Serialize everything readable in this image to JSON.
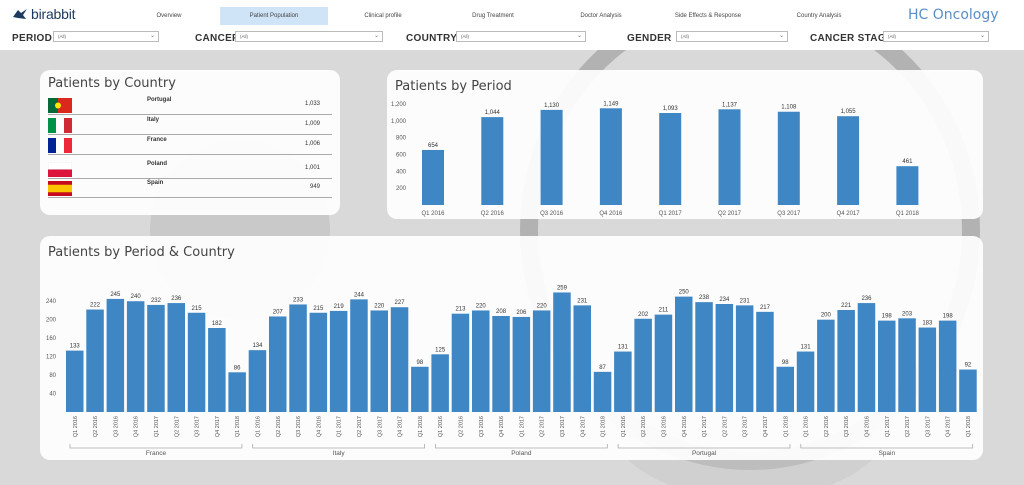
{
  "header": {
    "logo_text": "birabbit",
    "brand": "HC Oncology",
    "tabs": [
      {
        "label": "Overview",
        "active": false
      },
      {
        "label": "Patient Population",
        "active": true
      },
      {
        "label": "Clinical profile",
        "active": false
      },
      {
        "label": "Drug Treatment",
        "active": false
      },
      {
        "label": "Doctor Analysis",
        "active": false
      },
      {
        "label": "Side Effects & Response",
        "active": false
      },
      {
        "label": "Country Analysis",
        "active": false
      }
    ]
  },
  "filters": [
    {
      "label": "PERIOD",
      "value": "(All)"
    },
    {
      "label": "CANCER",
      "value": "(All)"
    },
    {
      "label": "COUNTRY",
      "value": "(All)"
    },
    {
      "label": "GENDER",
      "value": "(All)"
    },
    {
      "label": "CANCER STAGE",
      "value": "(All)"
    }
  ],
  "patients_by_country": {
    "title": "Patients by Country",
    "rows": [
      {
        "country": "Portugal",
        "value": "1,033",
        "flag": "portugal"
      },
      {
        "country": "Italy",
        "value": "1,009",
        "flag": "italy"
      },
      {
        "country": "France",
        "value": "1,006",
        "flag": "france"
      },
      {
        "country": "Poland",
        "value": "1,001",
        "flag": "poland"
      },
      {
        "country": "Spain",
        "value": "949",
        "flag": "spain"
      }
    ]
  },
  "colors": {
    "bar": "#3f86c4",
    "tab_active": "#cfe4f7",
    "brand": "#5a8ec7"
  },
  "chart_data": [
    {
      "type": "bar",
      "title": "Patients by Period",
      "categories": [
        "Q1 2016",
        "Q2 2016",
        "Q3 2016",
        "Q4 2016",
        "Q1 2017",
        "Q2 2017",
        "Q3 2017",
        "Q4 2017",
        "Q1 2018"
      ],
      "values": [
        654,
        1044,
        1130,
        1149,
        1093,
        1137,
        1108,
        1055,
        461
      ],
      "value_labels": [
        "654",
        "1,044",
        "1,130",
        "1,149",
        "1,093",
        "1,137",
        "1,108",
        "1,055",
        "461"
      ],
      "ylim": [
        0,
        1200
      ],
      "yticks": [
        "200",
        "400",
        "600",
        "800",
        "1,000",
        "1,200"
      ],
      "ytick_values": [
        200,
        400,
        600,
        800,
        1000,
        1200
      ],
      "grid": false
    },
    {
      "type": "bar",
      "title": "Patients by Period & Country",
      "periods": [
        "Q1 2016",
        "Q2 2016",
        "Q3 2016",
        "Q4 2016",
        "Q1 2017",
        "Q2 2017",
        "Q3 2017",
        "Q4 2017",
        "Q1 2018"
      ],
      "groups": [
        {
          "name": "France",
          "values": [
            133,
            222,
            245,
            240,
            232,
            236,
            215,
            182,
            86
          ]
        },
        {
          "name": "Italy",
          "values": [
            134,
            207,
            233,
            215,
            219,
            244,
            220,
            227,
            98
          ]
        },
        {
          "name": "Poland",
          "values": [
            125,
            213,
            220,
            208,
            206,
            220,
            259,
            231,
            87
          ]
        },
        {
          "name": "Portugal",
          "values": [
            131,
            202,
            211,
            250,
            238,
            234,
            231,
            217,
            98
          ]
        },
        {
          "name": "Spain",
          "values": [
            131,
            200,
            221,
            236,
            198,
            203,
            183,
            198,
            92
          ]
        }
      ],
      "ylim": [
        0,
        260
      ],
      "yticks": [
        "40",
        "80",
        "120",
        "160",
        "200",
        "240"
      ],
      "ytick_values": [
        40,
        80,
        120,
        160,
        200,
        240
      ],
      "grid": false
    }
  ]
}
